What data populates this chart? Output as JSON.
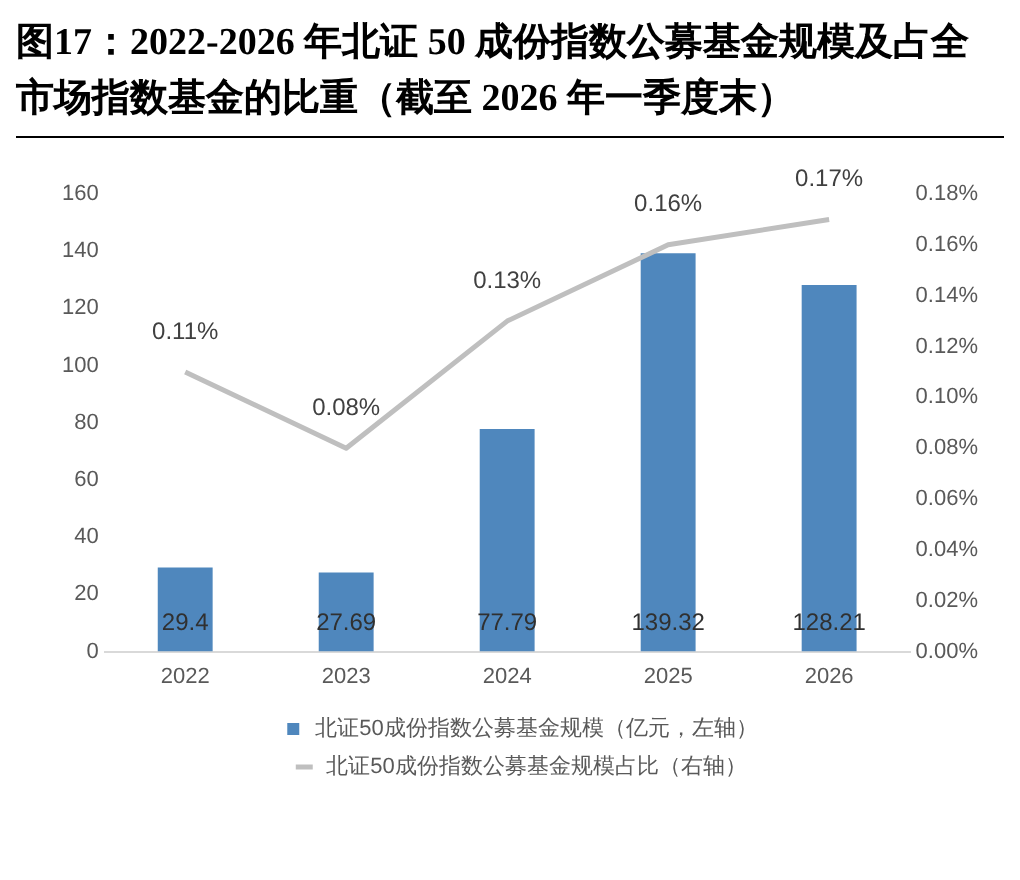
{
  "chart_data": {
    "type": "bar",
    "title": "图17：2022-2026 年北证 50 成份指数公募基金规模及占全市场指数基金的比重（截至 2026 年一季度末）",
    "categories": [
      "2022",
      "2023",
      "2024",
      "2025",
      "2026"
    ],
    "series": [
      {
        "name": "北证50成份指数公募基金规模（亿元，左轴）",
        "color": "#4f87bd",
        "values": [
          29.4,
          27.69,
          77.79,
          139.32,
          128.21
        ],
        "value_labels": [
          "29.4",
          "27.69",
          "77.79",
          "139.32",
          "128.21"
        ]
      },
      {
        "type": "line",
        "axis": "y2",
        "name": "北证50成份指数公募基金规模占比（右轴）",
        "color": "#bfbfbf",
        "marker": "none",
        "values": [
          0.11,
          0.08,
          0.13,
          0.16,
          0.17
        ],
        "value_labels": [
          "0.11%",
          "0.08%",
          "0.13%",
          "0.16%",
          "0.17%"
        ]
      }
    ],
    "ylim": [
      0,
      160
    ],
    "yticks": [
      0,
      20,
      40,
      60,
      80,
      100,
      120,
      140,
      160
    ],
    "y2lim": [
      0,
      0.18
    ],
    "y2ticks": [
      {
        "value": 0,
        "label": "0.00%"
      },
      {
        "value": 0.02,
        "label": "0.02%"
      },
      {
        "value": 0.04,
        "label": "0.04%"
      },
      {
        "value": 0.06,
        "label": "0.06%"
      },
      {
        "value": 0.08,
        "label": "0.08%"
      },
      {
        "value": 0.1,
        "label": "0.10%"
      },
      {
        "value": 0.12,
        "label": "0.12%"
      },
      {
        "value": 0.14,
        "label": "0.14%"
      },
      {
        "value": 0.16,
        "label": "0.16%"
      },
      {
        "value": 0.18,
        "label": "0.18%"
      }
    ],
    "legend": "bottom"
  }
}
